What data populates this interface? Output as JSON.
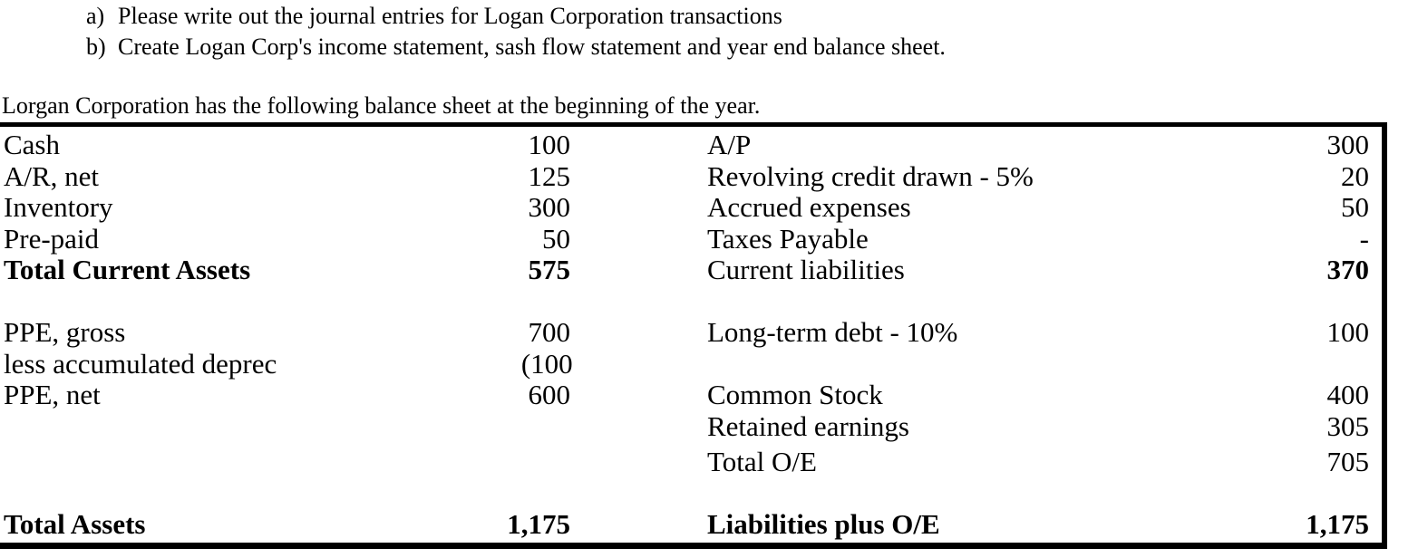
{
  "colors": {
    "text": "#000000",
    "background": "#ffffff",
    "border": "#000000"
  },
  "instructions": {
    "a_marker": "a)",
    "a_text": "Please write out the journal entries for Logan Corporation transactions",
    "b_marker": "b)",
    "b_text": "Create Logan Corp's income statement, sash flow statement and year end balance sheet."
  },
  "intro": "Lorgan Corporation has the following balance sheet at the beginning of the year.",
  "balance_sheet": {
    "rows": [
      {
        "left_label": "Cash",
        "left_value": "100",
        "right_label": "A/P",
        "right_value": "300"
      },
      {
        "left_label": "A/R, net",
        "left_value": "125",
        "right_label": "Revolving credit drawn - 5%",
        "right_value": "20"
      },
      {
        "left_label": "Inventory",
        "left_value": "300",
        "right_label": "Accrued expenses",
        "right_value": "50"
      },
      {
        "left_label": "Pre-paid",
        "left_value": "50",
        "left_underline": true,
        "right_label": "Taxes Payable",
        "right_value": "-",
        "right_underline": true
      },
      {
        "left_label": "Total Current Assets",
        "left_value": "575",
        "left_bold": true,
        "right_label": "Current liabilities",
        "right_value": "370",
        "right_value_bold": true
      },
      {
        "blank": true
      },
      {
        "left_label": "PPE, gross",
        "left_value": "700",
        "right_label": "Long-term debt - 10%",
        "right_value": "100"
      },
      {
        "left_label": "less accumulated deprec",
        "left_value": "(100)",
        "left_underline": true,
        "right_label": "",
        "right_value": ""
      },
      {
        "left_label": "PPE, net",
        "left_value": "600",
        "right_label": "Common Stock",
        "right_value": "400"
      },
      {
        "left_label": "",
        "left_value": "",
        "right_label": "Retained earnings",
        "right_value": "305",
        "right_underline": true
      },
      {
        "left_label": "",
        "left_value": "",
        "right_label": "Total O/E",
        "right_value": "705",
        "extra_top": true
      },
      {
        "blank": true
      },
      {
        "left_label": "Total Assets",
        "left_value": "1,175",
        "left_bold": true,
        "right_label": "Liabilities plus O/E",
        "right_value": "1,175",
        "right_bold": true
      }
    ]
  }
}
